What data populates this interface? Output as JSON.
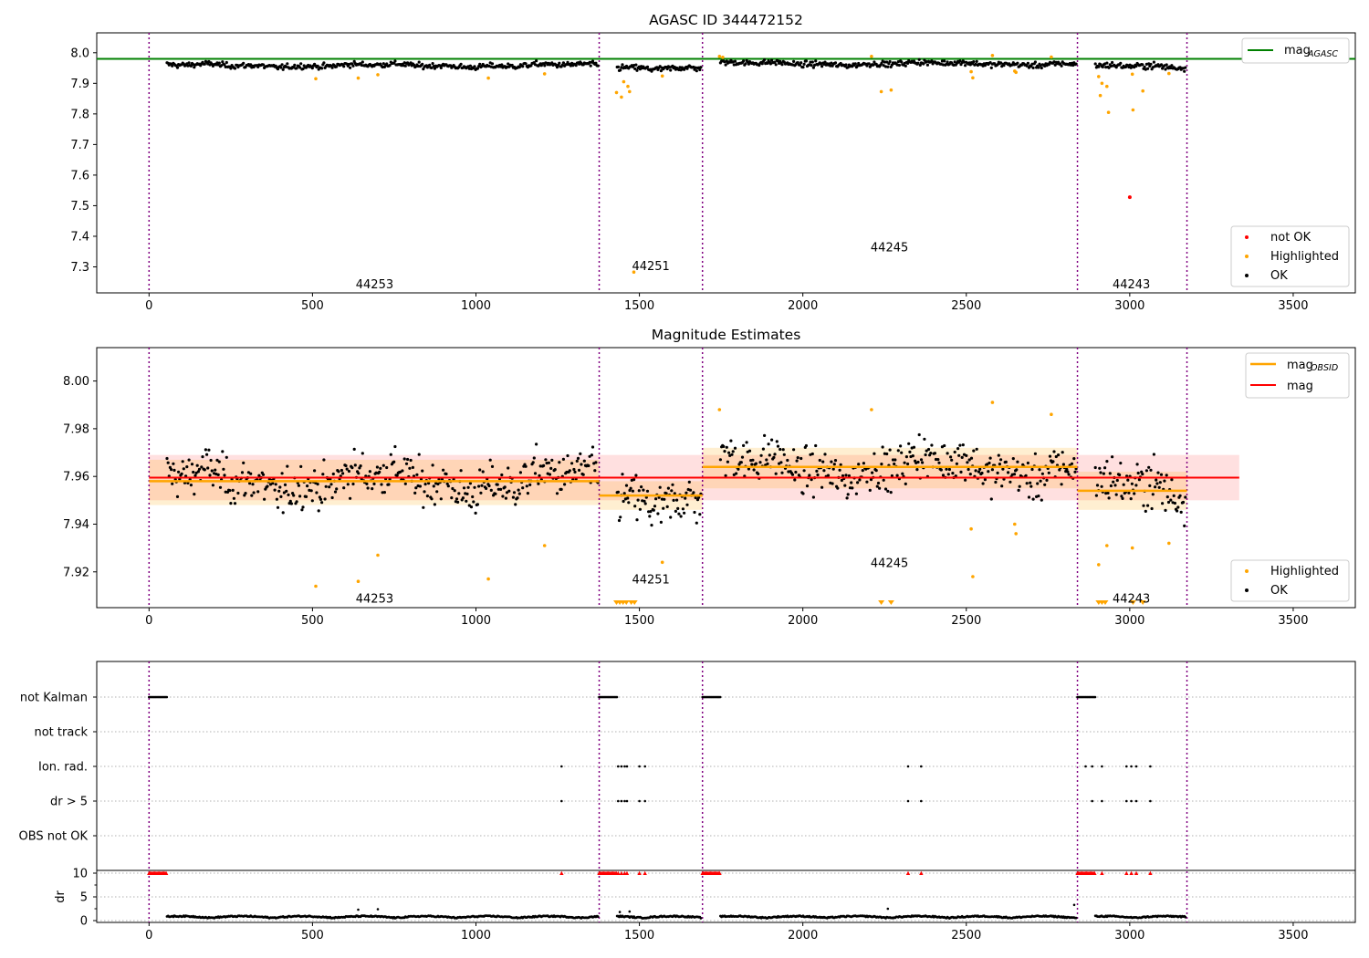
{
  "colors": {
    "ok": "#000000",
    "highlighted": "#ffa500",
    "not_ok": "#ff0000",
    "mag_agasc": "#008000",
    "mag_obsid": "#ffa500",
    "mag": "#ff0000",
    "obs_boundary": "#800080",
    "grid": "#b0b0b0"
  },
  "chart_data": [
    {
      "type": "scatter",
      "title": "AGASC ID 344472152",
      "xlim": [
        -160,
        3690
      ],
      "ylim": [
        7.215,
        8.065
      ],
      "xticks": [
        0,
        500,
        1000,
        1500,
        2000,
        2500,
        3000,
        3500
      ],
      "yticks": [
        7.3,
        7.4,
        7.5,
        7.6,
        7.7,
        7.8,
        7.9,
        8.0
      ],
      "ytick_labels": [
        "7.3",
        "7.4",
        "7.5",
        "7.6",
        "7.7",
        "7.8",
        "7.9",
        "8.0"
      ],
      "obs_boundaries": [
        0,
        1377,
        1693,
        2840,
        3175
      ],
      "observations": [
        {
          "obsid": "44253",
          "x": 690,
          "y": 7.245,
          "start": 0,
          "end": 1377,
          "mean": 7.958
        },
        {
          "obsid": "44251",
          "x": 1535,
          "y": 7.305,
          "start": 1377,
          "end": 1693,
          "mean": 7.952
        },
        {
          "obsid": "44245",
          "x": 2265,
          "y": 7.365,
          "start": 1693,
          "end": 2840,
          "mean": 7.964
        },
        {
          "obsid": "44243",
          "x": 3005,
          "y": 7.245,
          "start": 2840,
          "end": 3175,
          "mean": 7.954
        }
      ],
      "hlines": [
        {
          "name": "mag_AGASC",
          "y": 7.98,
          "xmin": -160,
          "xmax": 3690
        }
      ],
      "highlighted": [
        [
          510,
          7.915
        ],
        [
          640,
          7.917
        ],
        [
          700,
          7.928
        ],
        [
          1038,
          7.917
        ],
        [
          1210,
          7.931
        ],
        [
          1430,
          7.87
        ],
        [
          1445,
          7.855
        ],
        [
          1452,
          7.905
        ],
        [
          1465,
          7.89
        ],
        [
          1470,
          7.873
        ],
        [
          1483,
          7.283
        ],
        [
          1570,
          7.924
        ],
        [
          1745,
          7.988
        ],
        [
          1755,
          7.985
        ],
        [
          2210,
          7.988
        ],
        [
          2240,
          7.873
        ],
        [
          2270,
          7.878
        ],
        [
          2515,
          7.938
        ],
        [
          2520,
          7.918
        ],
        [
          2580,
          7.991
        ],
        [
          2648,
          7.94
        ],
        [
          2652,
          7.936
        ],
        [
          2760,
          7.986
        ],
        [
          2905,
          7.922
        ],
        [
          2910,
          7.86
        ],
        [
          2915,
          7.9
        ],
        [
          2930,
          7.89
        ],
        [
          2935,
          7.805
        ],
        [
          3008,
          7.93
        ],
        [
          3010,
          7.813
        ],
        [
          3040,
          7.875
        ],
        [
          3120,
          7.932
        ]
      ],
      "not_ok": [
        [
          3000,
          7.528
        ]
      ],
      "legend": {
        "position": "upper right / lower right",
        "entries": [
          "mag_AGASC",
          "not OK",
          "Highlighted",
          "OK"
        ]
      },
      "legend_text": {
        "mag_agasc_main": "mag",
        "mag_agasc_sub": "AGASC",
        "not_ok": "not OK",
        "highlighted": "Highlighted",
        "ok": "OK"
      }
    },
    {
      "type": "scatter",
      "title": "Magnitude Estimates",
      "xlim": [
        -160,
        3690
      ],
      "ylim": [
        7.905,
        8.014
      ],
      "xticks": [
        0,
        500,
        1000,
        1500,
        2000,
        2500,
        3000,
        3500
      ],
      "yticks": [
        7.92,
        7.94,
        7.96,
        7.98,
        8.0
      ],
      "ytick_labels": [
        "7.92",
        "7.94",
        "7.96",
        "7.98",
        "8.00"
      ],
      "obs_labels": [
        {
          "obsid": "44253",
          "x": 690,
          "y": 7.909
        },
        {
          "obsid": "44251",
          "x": 1535,
          "y": 7.917
        },
        {
          "obsid": "44245",
          "x": 2265,
          "y": 7.924
        },
        {
          "obsid": "44243",
          "x": 3005,
          "y": 7.909
        }
      ],
      "mag_line": {
        "y": 7.9595,
        "xmin": 0,
        "xmax": 3335,
        "band": [
          7.95,
          7.969
        ]
      },
      "obsid_segments": [
        {
          "start": 0,
          "end": 1377,
          "mean": 7.958,
          "lo": 7.948,
          "hi": 7.967
        },
        {
          "start": 1377,
          "end": 1693,
          "mean": 7.952,
          "lo": 7.946,
          "hi": 7.958
        },
        {
          "start": 1693,
          "end": 2840,
          "mean": 7.964,
          "lo": 7.955,
          "hi": 7.972
        },
        {
          "start": 2840,
          "end": 3175,
          "mean": 7.954,
          "lo": 7.946,
          "hi": 7.962
        }
      ],
      "highlighted": [
        [
          510,
          7.914
        ],
        [
          640,
          7.916
        ],
        [
          700,
          7.927
        ],
        [
          1038,
          7.917
        ],
        [
          1210,
          7.931
        ],
        [
          1570,
          7.924
        ],
        [
          1745,
          7.988
        ],
        [
          2210,
          7.988
        ],
        [
          2515,
          7.938
        ],
        [
          2520,
          7.918
        ],
        [
          2580,
          7.991
        ],
        [
          2648,
          7.94
        ],
        [
          2652,
          7.936
        ],
        [
          2760,
          7.986
        ],
        [
          2905,
          7.923
        ],
        [
          2930,
          7.931
        ],
        [
          3008,
          7.93
        ],
        [
          3120,
          7.932
        ]
      ],
      "clipped_markers": [
        1430,
        1440,
        1450,
        1460,
        1475,
        1485,
        2240,
        2270,
        2905,
        2915,
        2925,
        3010,
        3040
      ],
      "legend": {
        "position": "upper right / lower right",
        "entries": [
          "mag_OBSID",
          "mag",
          "Highlighted",
          "OK"
        ]
      },
      "legend_text": {
        "mag_obsid_main": "mag",
        "mag_obsid_sub": "OBSID",
        "mag": "mag",
        "highlighted": "Highlighted",
        "ok": "OK"
      }
    },
    {
      "type": "scatter",
      "title": "",
      "xlim": [
        -160,
        3690
      ],
      "xticks": [
        0,
        500,
        1000,
        1500,
        2000,
        2500,
        3000,
        3500
      ],
      "flag_rows": [
        "not Kalman",
        "not track",
        "Ion. rad.",
        "dr > 5",
        "OBS not OK"
      ],
      "flag_points": {
        "not Kalman": [
          [
            0,
            55
          ],
          [
            1377,
            1432
          ],
          [
            1693,
            1748
          ],
          [
            2840,
            2895
          ]
        ],
        "Ion. rad.": [
          1262,
          1435,
          1445,
          1455,
          1462,
          1500,
          1517,
          2322,
          2362,
          2865,
          2885,
          2915,
          2990,
          3005,
          3020,
          3063
        ],
        "dr > 5": [
          1262,
          1435,
          1445,
          1455,
          1462,
          1500,
          1517,
          2322,
          2362,
          2885,
          2915,
          2990,
          3005,
          3020,
          3063
        ]
      },
      "dr_axis": {
        "ylabel": "dr",
        "ylim": [
          -0.3,
          10.3
        ],
        "yticks": [
          0,
          5,
          10
        ],
        "ytick_labels": [
          "0",
          "5",
          "10"
        ]
      },
      "dr_high_red": [
        [
          0,
          55
        ],
        [
          1377,
          1432
        ],
        [
          1693,
          1748
        ],
        [
          2840,
          2895
        ]
      ],
      "dr_high_red_points": [
        1262,
        1435,
        1445,
        1455,
        1462,
        1500,
        1517,
        2322,
        2362,
        2915,
        2990,
        3005,
        3020,
        3063
      ],
      "dr_outliers": [
        [
          640,
          2.3
        ],
        [
          700,
          2.4
        ],
        [
          1440,
          1.8
        ],
        [
          1470,
          1.9
        ],
        [
          2260,
          2.5
        ],
        [
          2830,
          3.3
        ]
      ]
    }
  ]
}
